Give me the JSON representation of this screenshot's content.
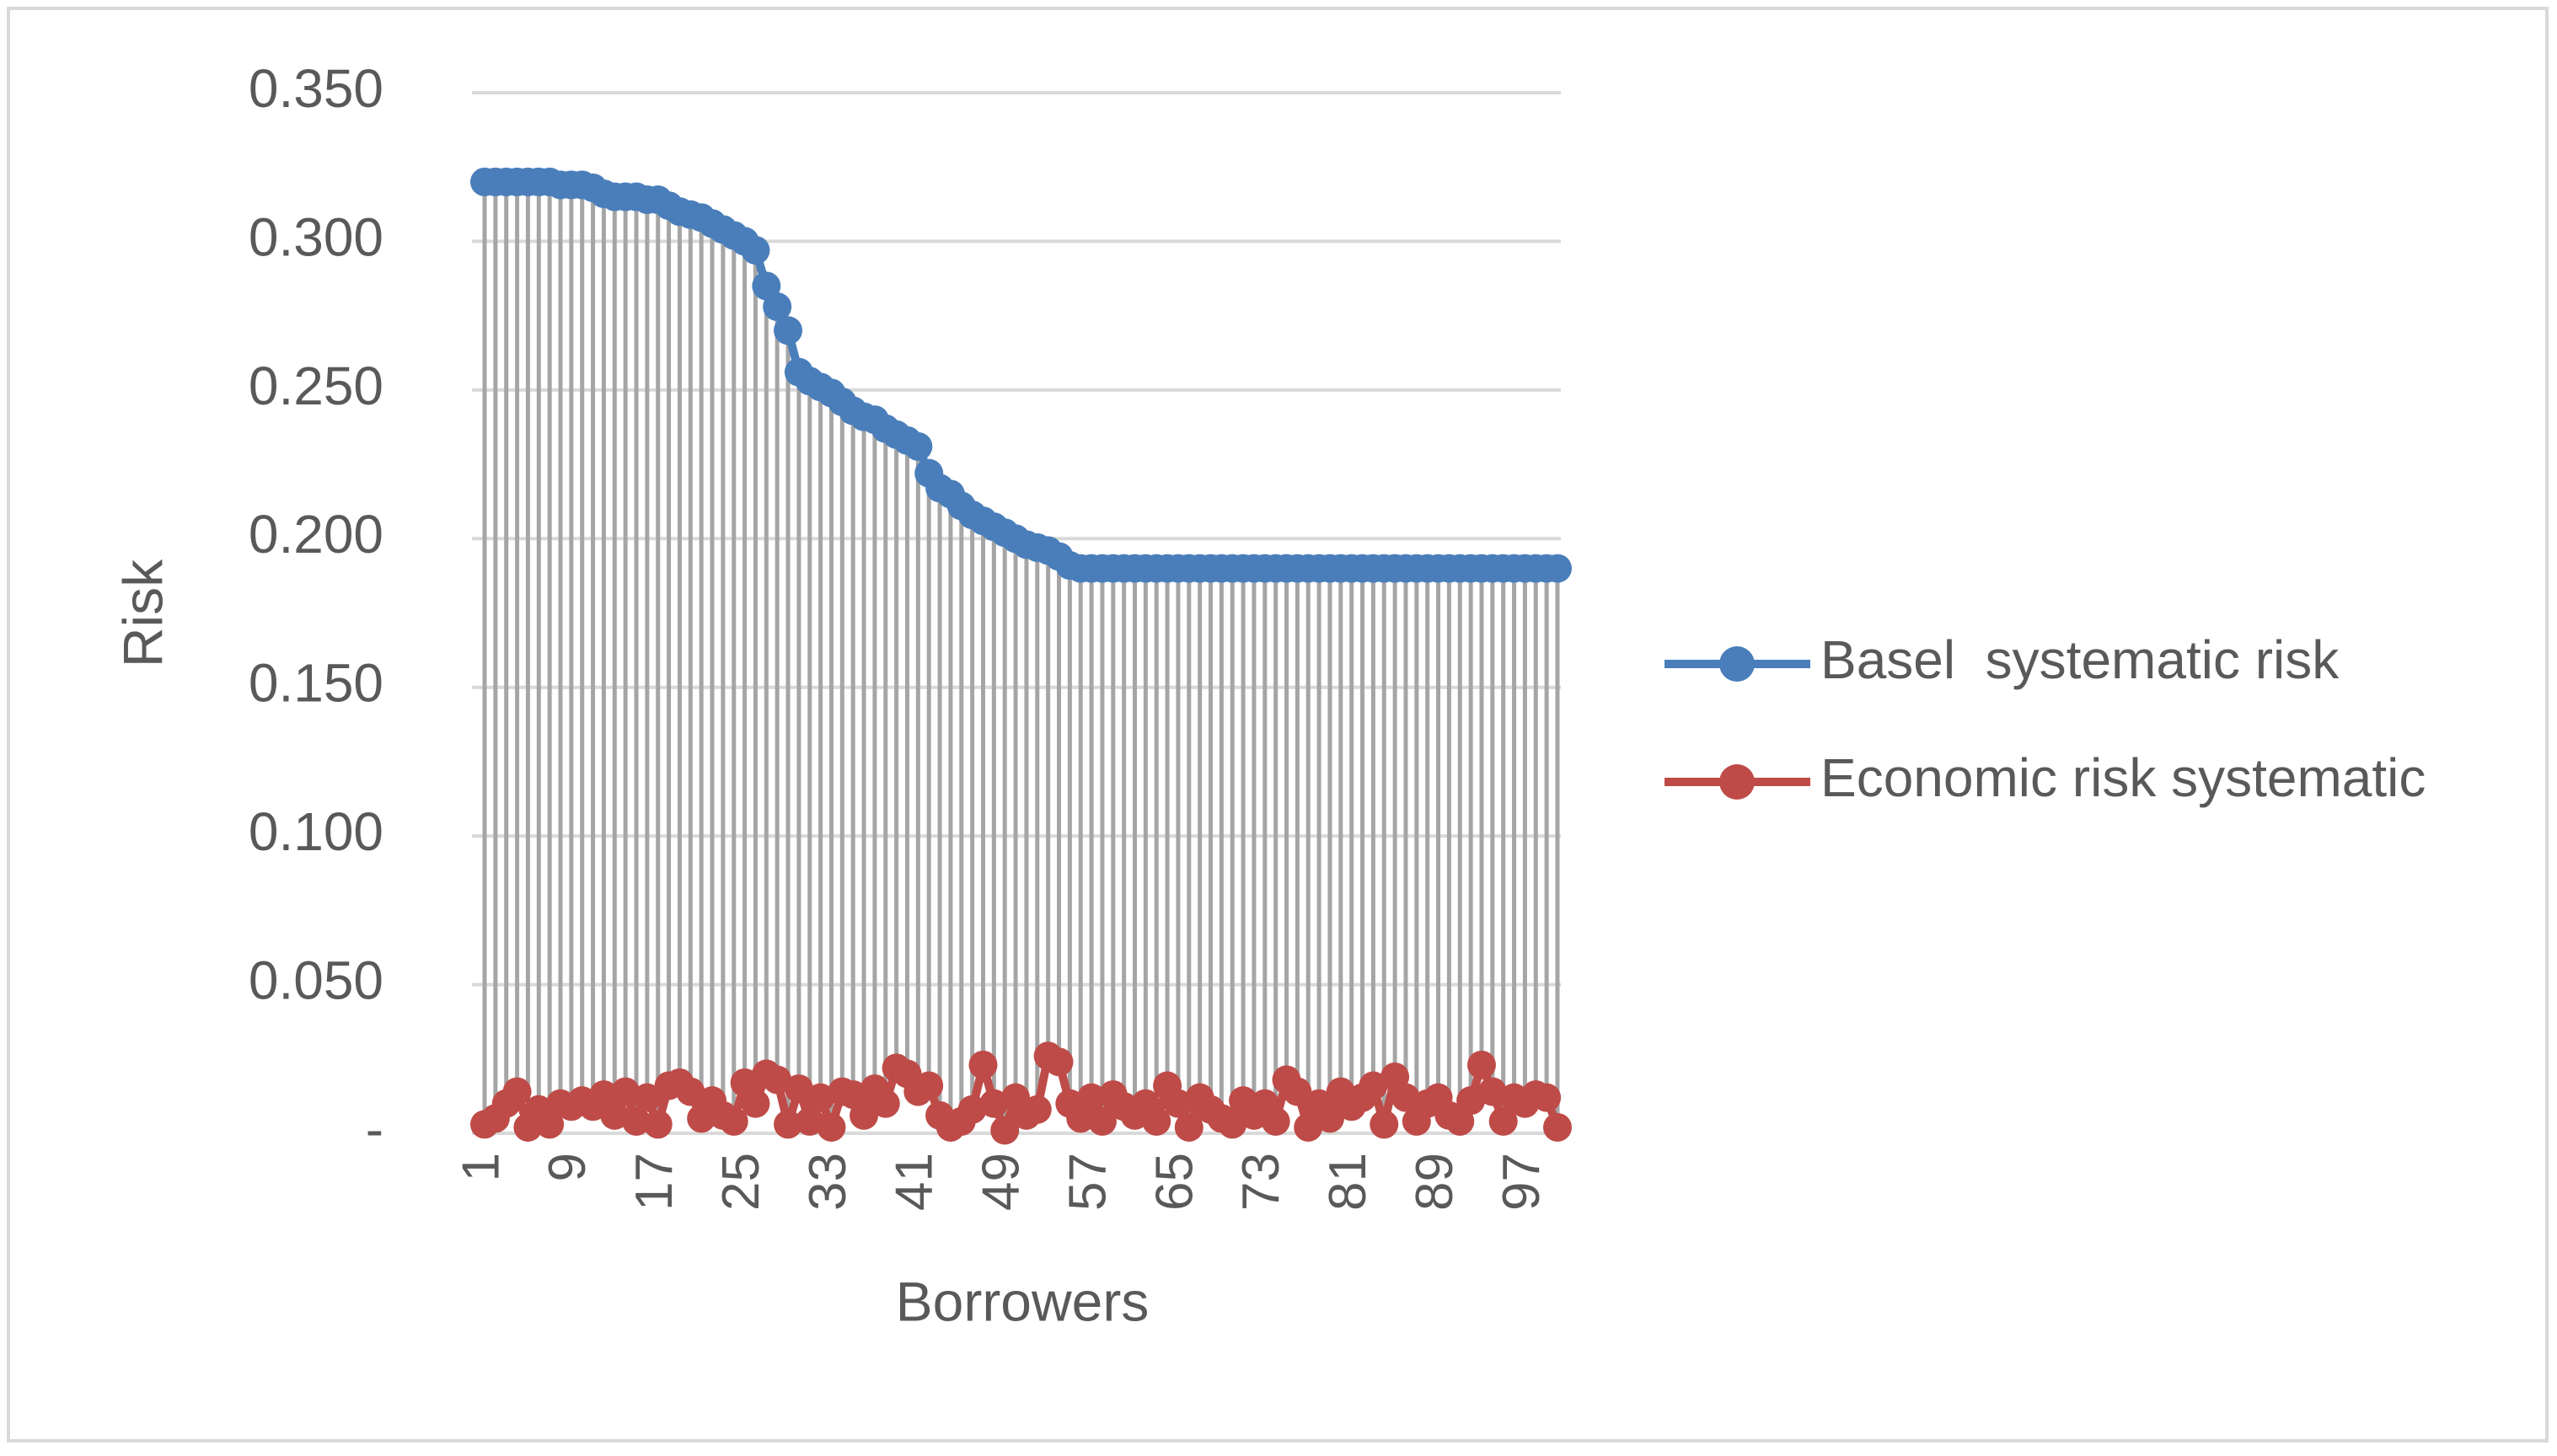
{
  "chart_data": {
    "type": "line",
    "y_label": "Risk",
    "x_label": "Borrowers",
    "categories": [
      "1",
      null,
      null,
      null,
      null,
      null,
      null,
      null,
      "9",
      null,
      null,
      null,
      null,
      null,
      null,
      null,
      "17",
      null,
      null,
      null,
      null,
      null,
      null,
      null,
      "25",
      null,
      null,
      null,
      null,
      null,
      null,
      null,
      "33",
      null,
      null,
      null,
      null,
      null,
      null,
      null,
      "41",
      null,
      null,
      null,
      null,
      null,
      null,
      null,
      "49",
      null,
      null,
      null,
      null,
      null,
      null,
      null,
      "57",
      null,
      null,
      null,
      null,
      null,
      null,
      null,
      "65",
      null,
      null,
      null,
      null,
      null,
      null,
      null,
      "73",
      null,
      null,
      null,
      null,
      null,
      null,
      null,
      "81",
      null,
      null,
      null,
      null,
      null,
      null,
      null,
      "89",
      null,
      null,
      null,
      null,
      null,
      null,
      null,
      "97",
      null,
      null,
      null
    ],
    "series": [
      {
        "name": "Basel  systematic risk",
        "color": "#4a7ebb",
        "values": [
          0.32,
          0.32,
          0.32,
          0.32,
          0.32,
          0.32,
          0.32,
          0.319,
          0.319,
          0.319,
          0.318,
          0.316,
          0.315,
          0.315,
          0.315,
          0.314,
          0.314,
          0.312,
          0.31,
          0.309,
          0.308,
          0.306,
          0.304,
          0.302,
          0.3,
          0.297,
          0.285,
          0.278,
          0.27,
          0.256,
          0.253,
          0.251,
          0.249,
          0.246,
          0.243,
          0.241,
          0.24,
          0.237,
          0.235,
          0.233,
          0.231,
          0.222,
          0.217,
          0.215,
          0.211,
          0.208,
          0.206,
          0.204,
          0.202,
          0.2,
          0.198,
          0.197,
          0.196,
          0.194,
          0.191,
          0.19,
          0.19,
          0.19,
          0.19,
          0.19,
          0.19,
          0.19,
          0.19,
          0.19,
          0.19,
          0.19,
          0.19,
          0.19,
          0.19,
          0.19,
          0.19,
          0.19,
          0.19,
          0.19,
          0.19,
          0.19,
          0.19,
          0.19,
          0.19,
          0.19,
          0.19,
          0.19,
          0.19,
          0.19,
          0.19,
          0.19,
          0.19,
          0.19,
          0.19,
          0.19,
          0.19,
          0.19,
          0.19,
          0.19,
          0.19,
          0.19,
          0.19,
          0.19,
          0.19,
          0.19
        ]
      },
      {
        "name": "Economic risk systematic",
        "color": "#be4b48",
        "values": [
          0.003,
          0.005,
          0.01,
          0.014,
          0.002,
          0.008,
          0.003,
          0.01,
          0.009,
          0.011,
          0.009,
          0.013,
          0.006,
          0.014,
          0.004,
          0.012,
          0.003,
          0.016,
          0.017,
          0.014,
          0.005,
          0.011,
          0.006,
          0.004,
          0.017,
          0.01,
          0.02,
          0.018,
          0.003,
          0.015,
          0.004,
          0.012,
          0.002,
          0.014,
          0.013,
          0.006,
          0.015,
          0.01,
          0.022,
          0.02,
          0.014,
          0.016,
          0.006,
          0.002,
          0.004,
          0.008,
          0.023,
          0.01,
          0.001,
          0.012,
          0.006,
          0.008,
          0.026,
          0.024,
          0.01,
          0.005,
          0.012,
          0.004,
          0.013,
          0.009,
          0.006,
          0.01,
          0.004,
          0.016,
          0.01,
          0.002,
          0.012,
          0.008,
          0.005,
          0.003,
          0.011,
          0.006,
          0.01,
          0.004,
          0.018,
          0.014,
          0.002,
          0.01,
          0.005,
          0.014,
          0.009,
          0.012,
          0.016,
          0.003,
          0.019,
          0.012,
          0.004,
          0.01,
          0.012,
          0.006,
          0.004,
          0.011,
          0.023,
          0.014,
          0.004,
          0.012,
          0.01,
          0.013,
          0.012,
          0.002
        ]
      }
    ],
    "ylim": [
      0,
      0.35
    ],
    "yticks": [
      {
        "value": 0,
        "label": "-"
      },
      {
        "value": 0.05,
        "label": "0.050"
      },
      {
        "value": 0.1,
        "label": "0.100"
      },
      {
        "value": 0.15,
        "label": "0.150"
      },
      {
        "value": 0.2,
        "label": "0.200"
      },
      {
        "value": 0.25,
        "label": "0.250"
      },
      {
        "value": 0.3,
        "label": "0.300"
      },
      {
        "value": 0.35,
        "label": "0.350"
      }
    ],
    "grid": true,
    "high_low_lines": true,
    "legend_position": "right"
  }
}
